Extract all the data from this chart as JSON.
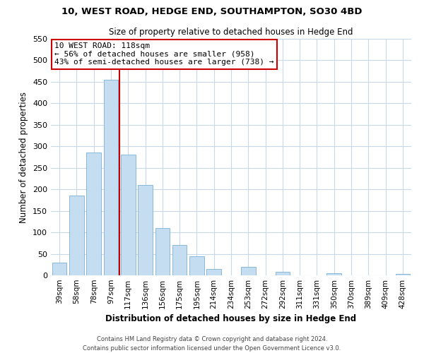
{
  "title_line1": "10, WEST ROAD, HEDGE END, SOUTHAMPTON, SO30 4BD",
  "title_line2": "Size of property relative to detached houses in Hedge End",
  "xlabel": "Distribution of detached houses by size in Hedge End",
  "ylabel": "Number of detached properties",
  "bar_labels": [
    "39sqm",
    "58sqm",
    "78sqm",
    "97sqm",
    "117sqm",
    "136sqm",
    "156sqm",
    "175sqm",
    "195sqm",
    "214sqm",
    "234sqm",
    "253sqm",
    "272sqm",
    "292sqm",
    "311sqm",
    "331sqm",
    "350sqm",
    "370sqm",
    "389sqm",
    "409sqm",
    "428sqm"
  ],
  "bar_values": [
    30,
    185,
    285,
    455,
    280,
    210,
    110,
    70,
    45,
    15,
    0,
    20,
    0,
    8,
    0,
    0,
    5,
    0,
    0,
    0,
    3
  ],
  "bar_color": "#c5ddf0",
  "bar_edge_color": "#7ab0d4",
  "vline_x_idx": 3.5,
  "vline_color": "#cc0000",
  "annotation_title": "10 WEST ROAD: 118sqm",
  "annotation_line1": "← 56% of detached houses are smaller (958)",
  "annotation_line2": "43% of semi-detached houses are larger (738) →",
  "annotation_box_color": "#ffffff",
  "annotation_box_edge": "#cc0000",
  "ylim": [
    0,
    550
  ],
  "yticks": [
    0,
    50,
    100,
    150,
    200,
    250,
    300,
    350,
    400,
    450,
    500,
    550
  ],
  "footer_line1": "Contains HM Land Registry data © Crown copyright and database right 2024.",
  "footer_line2": "Contains public sector information licensed under the Open Government Licence v3.0.",
  "bg_color": "#ffffff",
  "grid_color": "#c8d8e8"
}
